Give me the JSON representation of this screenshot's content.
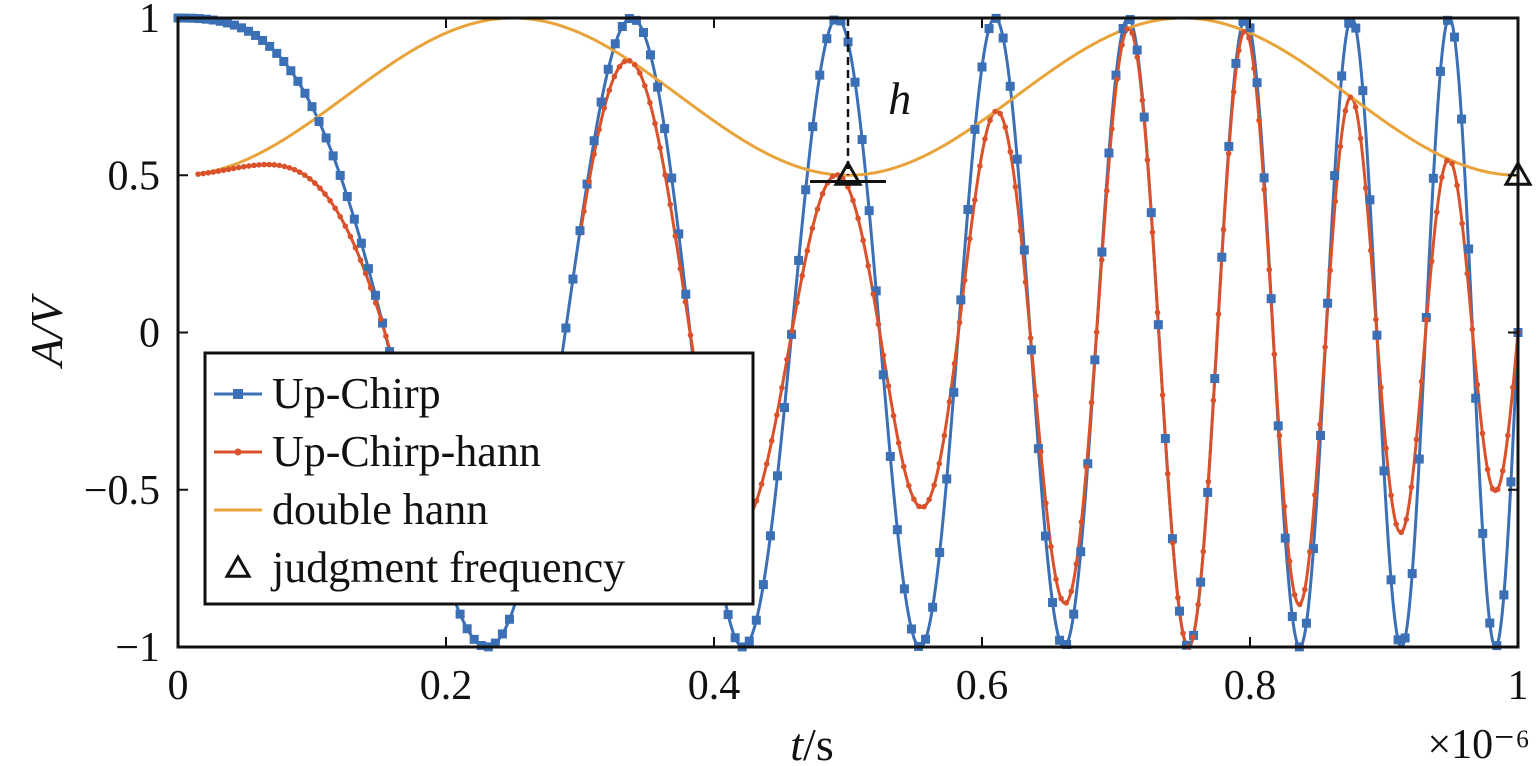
{
  "chart_data": {
    "type": "line",
    "xlabel_italic": "t",
    "xlabel_unit": "/s",
    "ylabel": "A/V",
    "x_multiplier": "×10⁻⁶",
    "xlim": [
      0,
      1
    ],
    "ylim": [
      -1,
      1
    ],
    "x_ticks": [
      "0",
      "0.2",
      "0.4",
      "0.6",
      "0.8",
      "1"
    ],
    "x_tick_values": [
      0,
      0.2,
      0.4,
      0.6,
      0.8,
      1
    ],
    "y_ticks": [
      "1",
      "0.5",
      "0",
      "−0.5",
      "−1"
    ],
    "y_tick_values": [
      1,
      0.5,
      0,
      -0.5,
      -1
    ],
    "grid": false,
    "legend_position": "bottom-left",
    "series": [
      {
        "name": "Up-Chirp",
        "color": "#3b6fb6",
        "marker": "square",
        "formula": "cos(2*pi*(0.5*t + 0.5*k*t^2)), t in units of 1e-6 s, k ≈ 14.5"
      },
      {
        "name": "Up-Chirp-hann",
        "color": "#d9522b",
        "marker": "dot",
        "formula": "Up-Chirp × double hann"
      },
      {
        "name": "double hann",
        "color": "#e8a43a",
        "marker": "none",
        "formula": "0.75 − 0.25·cos(4·pi·t)"
      },
      {
        "name": "judgment frequency",
        "color": "#111111",
        "marker": "triangle-open",
        "points": [
          [
            0.5,
            0.5
          ],
          [
            1.0,
            0.5
          ]
        ]
      }
    ],
    "annotations": [
      {
        "text": "h",
        "x": 0.53,
        "y": 0.74
      }
    ]
  }
}
